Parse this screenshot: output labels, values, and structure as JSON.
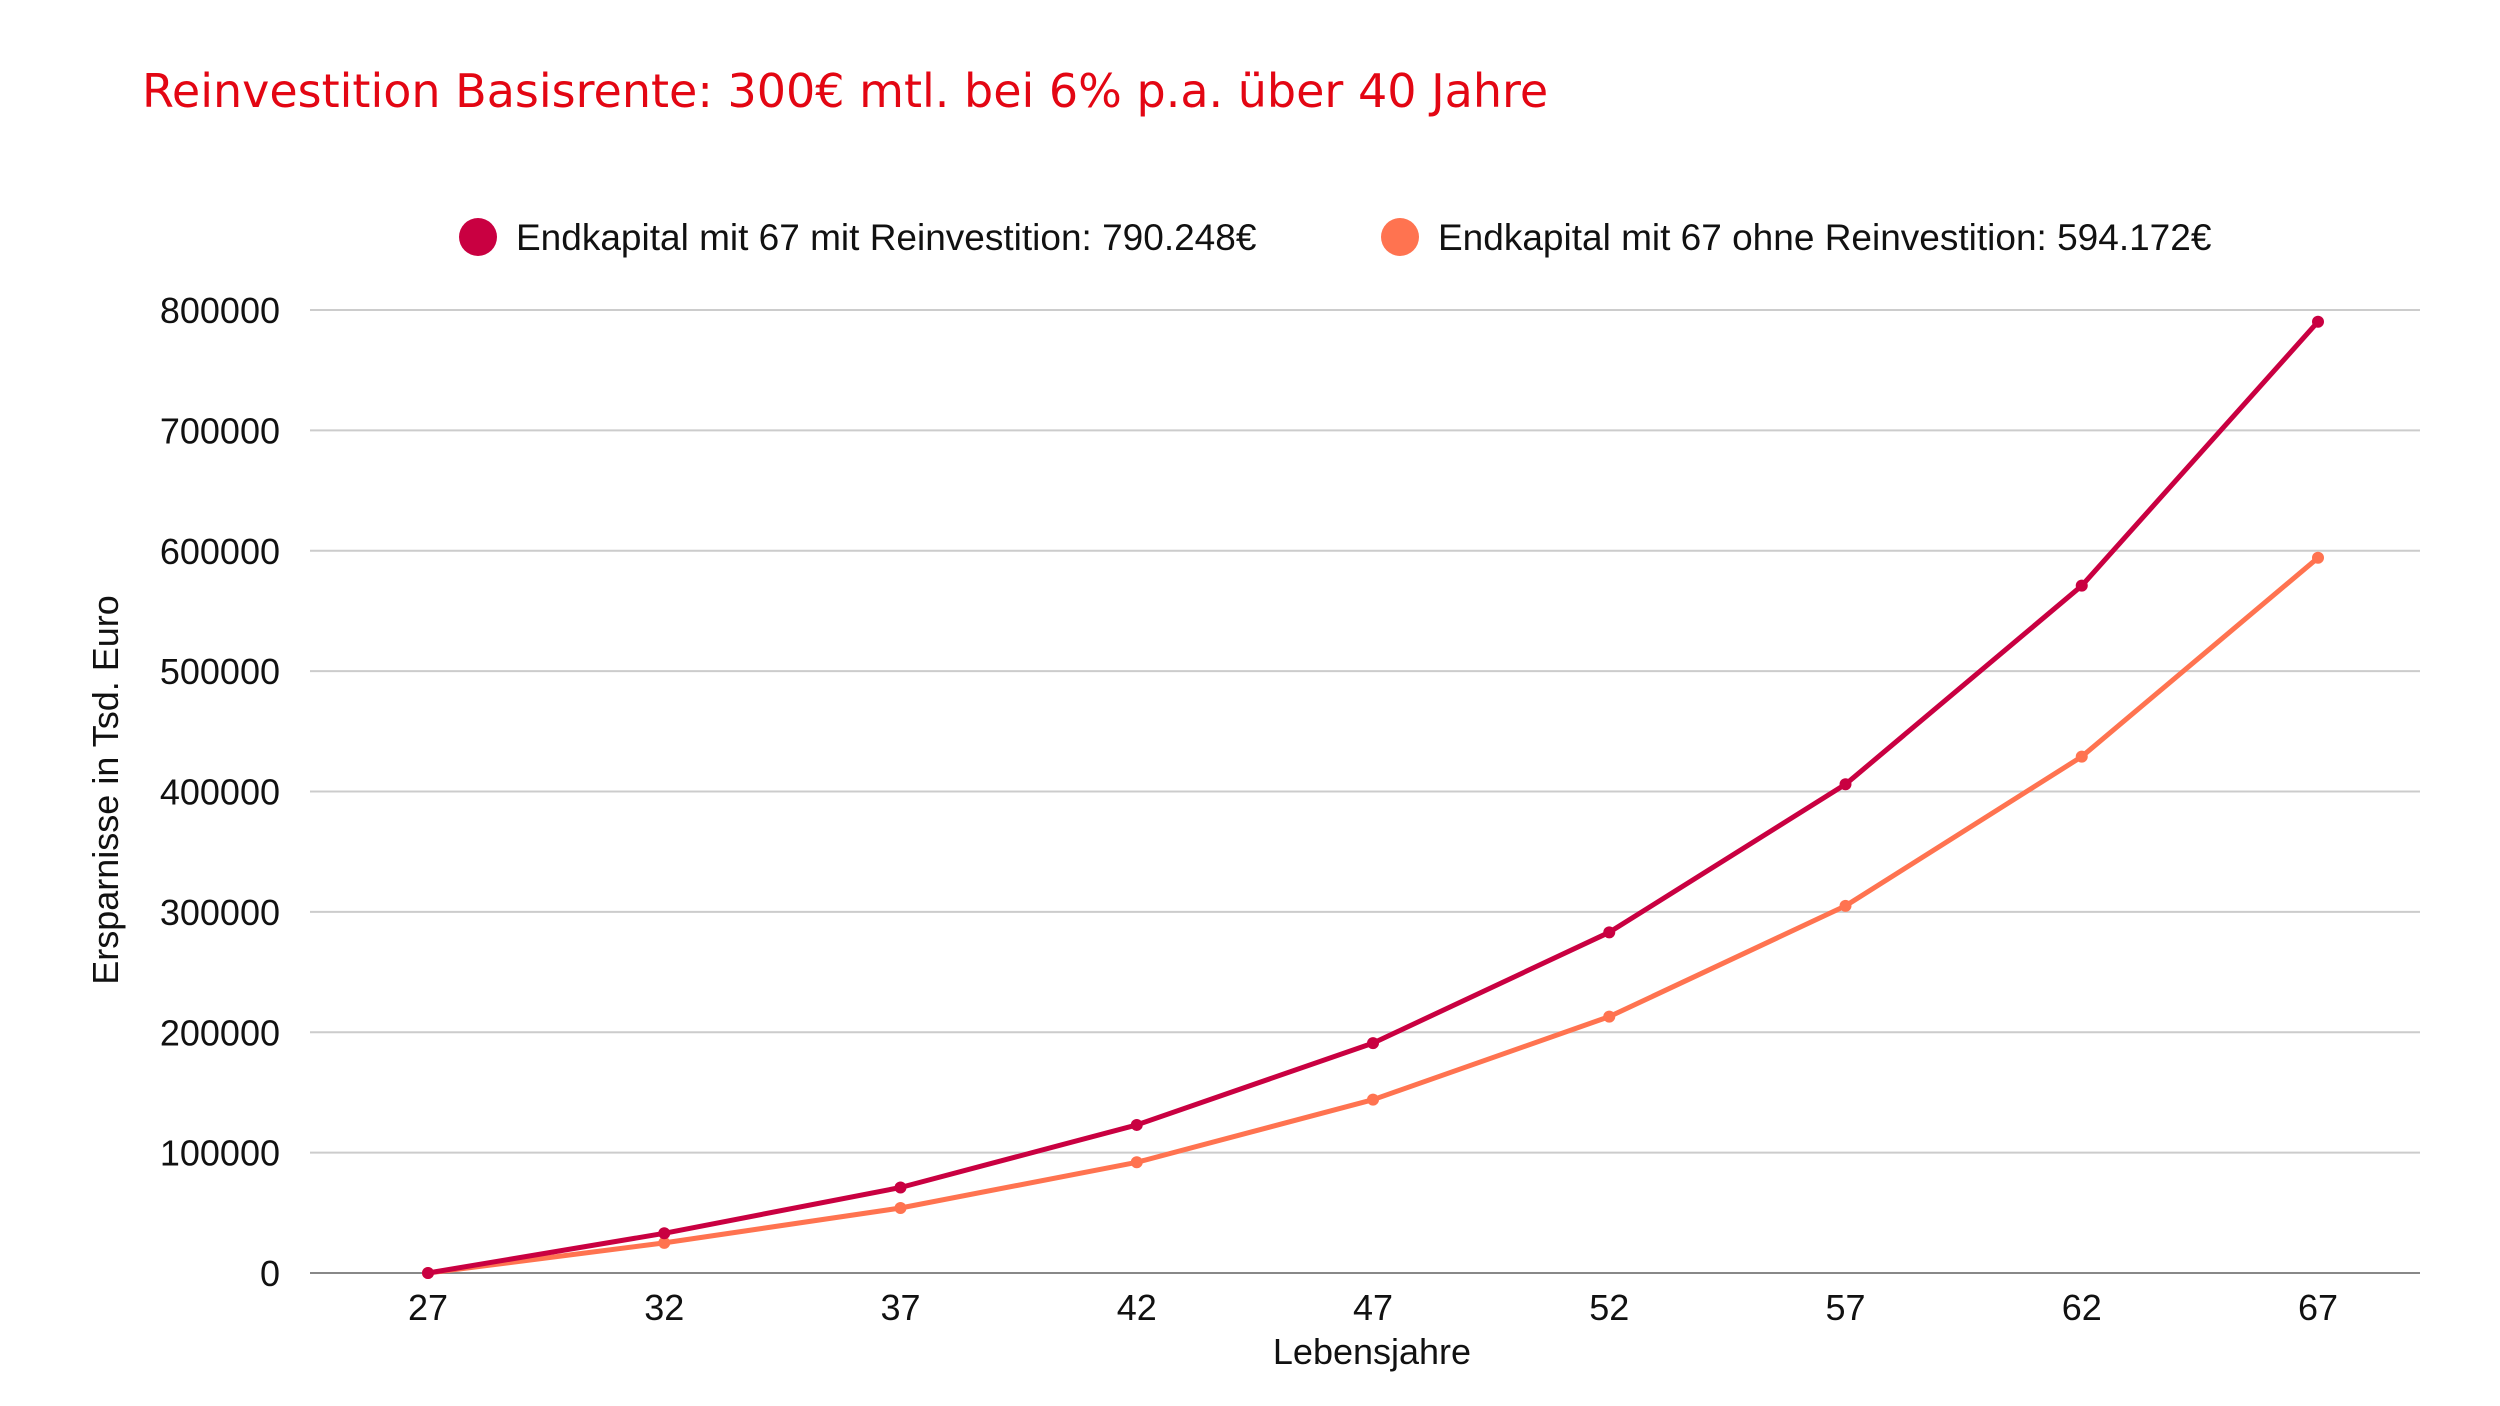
{
  "chart_data": {
    "type": "line",
    "title": "Reinvestition Basisrente: 300€ mtl. bei 6% p.a. über 40 Jahre",
    "xlabel": "Lebensjahre",
    "ylabel": "Ersparnisse in Tsd. Euro",
    "categories": [
      "27",
      "32",
      "37",
      "42",
      "47",
      "52",
      "57",
      "62",
      "67"
    ],
    "ylim": [
      0,
      800000
    ],
    "yticks": [
      "0",
      "100000",
      "200000",
      "300000",
      "400000",
      "500000",
      "600000",
      "700000",
      "800000"
    ],
    "grid": true,
    "legend_position": "top",
    "series": [
      {
        "name": "Endkapital mit 67 mit Reinvestition: 790.248€",
        "color": "#c90041",
        "values": [
          0,
          33000,
          71000,
          123000,
          191000,
          283000,
          406000,
          571000,
          790248
        ]
      },
      {
        "name": "Endkapital mit 67 ohne Reinvestition: 594.172€",
        "color": "#ff7350",
        "values": [
          0,
          25000,
          54000,
          92000,
          144000,
          213000,
          305000,
          429000,
          594172
        ]
      }
    ]
  },
  "colors": {
    "title": "#e30613",
    "grid": "#cccccc",
    "axis": "#888888"
  }
}
